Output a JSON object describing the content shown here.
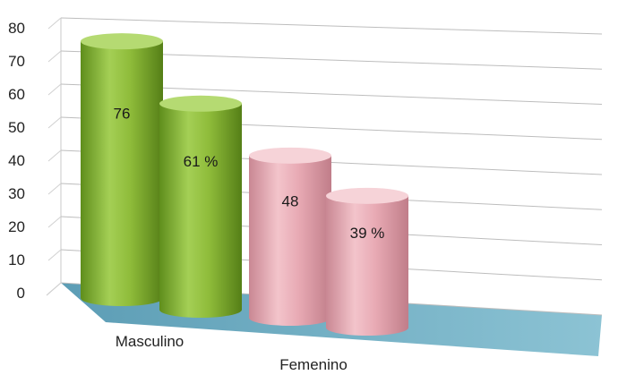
{
  "chart_data": {
    "type": "bar",
    "style": "3d-cylinder",
    "title": "",
    "xlabel": "",
    "ylabel": "",
    "ylim": [
      0,
      80
    ],
    "yticks": [
      "0",
      "10",
      "20",
      "30",
      "40",
      "50",
      "60",
      "70",
      "80"
    ],
    "grid": true,
    "legend": "none",
    "categories": [
      "Masculino",
      "Femenino"
    ],
    "bars": [
      {
        "category": "Masculino",
        "value": 76,
        "label": "76",
        "color": "#8fbc3a"
      },
      {
        "category": "Masculino",
        "value": 61,
        "label": "61 %",
        "color": "#8fbc3a"
      },
      {
        "category": "Femenino",
        "value": 48,
        "label": "48",
        "color": "#e8aab4"
      },
      {
        "category": "Femenino",
        "value": 39,
        "label": "39 %",
        "color": "#e8aab4"
      }
    ],
    "floor_color": "#6aa9bf"
  }
}
